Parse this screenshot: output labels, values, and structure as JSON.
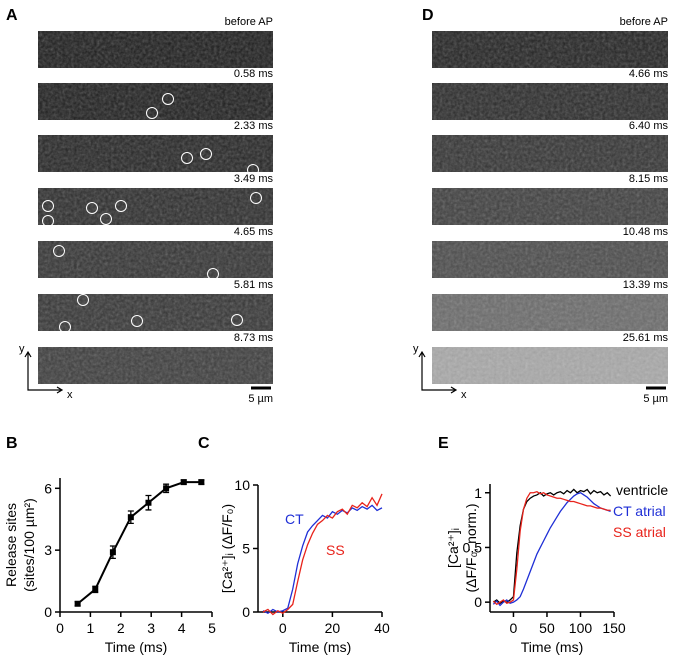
{
  "image_panels": [
    {
      "label": "A",
      "frames": [
        "before AP",
        "0.58 ms",
        "2.33 ms",
        "3.49 ms",
        "4.65 ms",
        "5.81 ms",
        "8.73 ms"
      ],
      "scale_bar": "5 µm",
      "axis_x": "x",
      "axis_y": "y"
    },
    {
      "label": "D",
      "frames": [
        "before AP",
        "4.66 ms",
        "6.40 ms",
        "8.15 ms",
        "10.48 ms",
        "13.39 ms",
        "25.61 ms"
      ],
      "scale_bar": "5 µm",
      "axis_x": "x",
      "axis_y": "y"
    }
  ],
  "chart_data": [
    {
      "label": "B",
      "type": "line",
      "x_label": "Time (ms)",
      "y_label": [
        "Release sites",
        "(sites/100 µm²)"
      ],
      "xlim": [
        0,
        5
      ],
      "xticks": [
        0,
        1,
        2,
        3,
        4,
        5
      ],
      "ylim": [
        0,
        6.5
      ],
      "yticks": [
        0,
        3,
        6
      ],
      "series": [
        {
          "color": "#000000",
          "x": [
            0.58,
            1.16,
            1.74,
            2.33,
            2.91,
            3.49,
            4.07,
            4.65
          ],
          "values": [
            0.4,
            1.1,
            2.9,
            4.6,
            5.3,
            6.0,
            6.3,
            6.3
          ],
          "errors": [
            0.1,
            0.15,
            0.3,
            0.3,
            0.35,
            0.2,
            0.1,
            0.1
          ]
        }
      ]
    },
    {
      "label": "C",
      "type": "line",
      "x_label": "Time (ms)",
      "y_label": [
        "[Ca²⁺]ᵢ (ΔF/F₀)"
      ],
      "xlim": [
        -10,
        40
      ],
      "xticks": [
        0,
        20,
        40
      ],
      "ylim": [
        0,
        10
      ],
      "yticks": [
        0,
        5,
        10
      ],
      "series": [
        {
          "name": "CT",
          "color": "#1f2fd6",
          "x": [
            -8,
            -6,
            -4,
            -2,
            0,
            2,
            4,
            6,
            8,
            10,
            12,
            14,
            16,
            18,
            20,
            22,
            24,
            26,
            28,
            30,
            32,
            34,
            36,
            38,
            40
          ],
          "values": [
            0.1,
            -0.1,
            0.2,
            0,
            0.1,
            0.3,
            1.8,
            3.8,
            5.2,
            6.3,
            6.8,
            7.2,
            7.6,
            7.4,
            7.9,
            7.7,
            8.0,
            7.8,
            8.2,
            8.0,
            8.3,
            8.1,
            8.4,
            8.0,
            8.2
          ]
        },
        {
          "name": "SS",
          "color": "#e8231b",
          "x": [
            -8,
            -6,
            -4,
            -2,
            0,
            2,
            4,
            6,
            8,
            10,
            12,
            14,
            16,
            18,
            20,
            22,
            24,
            26,
            28,
            30,
            32,
            34,
            36,
            38,
            40
          ],
          "values": [
            0,
            0.2,
            -0.2,
            0.1,
            -0.1,
            0.2,
            0.6,
            2.4,
            4.1,
            5.3,
            6.2,
            6.9,
            7.2,
            7.6,
            7.4,
            7.9,
            8.1,
            7.7,
            8.4,
            8.2,
            8.6,
            8.3,
            9.0,
            8.4,
            9.3
          ]
        }
      ]
    },
    {
      "label": "E",
      "type": "line",
      "x_label": "Time (ms)",
      "y_label": [
        "[Ca²⁺]ᵢ",
        "(ΔF/F₀; norm.)"
      ],
      "xlim": [
        -35,
        150
      ],
      "xticks": [
        0,
        50,
        100,
        150
      ],
      "ylim": [
        -0.09,
        1.08
      ],
      "yticks": [
        0,
        0.5,
        1
      ],
      "series": [
        {
          "name": "ventricle",
          "color": "#000000",
          "x": [
            -30,
            -25,
            -20,
            -15,
            -10,
            -5,
            0,
            5,
            10,
            15,
            20,
            25,
            30,
            35,
            40,
            45,
            50,
            55,
            60,
            65,
            70,
            75,
            80,
            85,
            90,
            95,
            100,
            105,
            110,
            115,
            120,
            125,
            130,
            135,
            140,
            145
          ],
          "values": [
            0,
            0.02,
            -0.01,
            0.01,
            0,
            0.02,
            0.05,
            0.45,
            0.7,
            0.85,
            0.92,
            0.95,
            0.97,
            0.98,
            1.0,
            0.97,
            0.99,
            1.0,
            0.98,
            1.0,
            1.01,
            0.99,
            1.02,
            1.0,
            1.03,
            1.0,
            1.02,
            1.01,
            1.03,
            0.99,
            1.02,
            1.0,
            1.01,
            0.98,
            1.0,
            0.97
          ]
        },
        {
          "name": "CT atrial",
          "color": "#1f2fd6",
          "x": [
            -30,
            -25,
            -20,
            -15,
            -10,
            -5,
            0,
            5,
            10,
            15,
            20,
            25,
            30,
            35,
            40,
            45,
            50,
            55,
            60,
            65,
            70,
            75,
            80,
            85,
            90,
            95,
            100,
            105,
            110,
            115,
            120,
            125,
            130,
            135,
            140,
            145
          ],
          "values": [
            -0.02,
            0.01,
            -0.03,
            0,
            0.02,
            -0.01,
            0,
            0.02,
            0.05,
            0.12,
            0.2,
            0.28,
            0.36,
            0.44,
            0.5,
            0.56,
            0.62,
            0.68,
            0.73,
            0.78,
            0.83,
            0.87,
            0.91,
            0.94,
            0.97,
            0.99,
            1.0,
            0.98,
            0.96,
            0.93,
            0.9,
            0.88,
            0.86,
            0.85,
            0.84,
            0.83
          ]
        },
        {
          "name": "SS atrial",
          "color": "#e8231b",
          "x": [
            -30,
            -25,
            -20,
            -15,
            -10,
            -5,
            0,
            5,
            10,
            15,
            20,
            25,
            30,
            35,
            40,
            45,
            50,
            55,
            60,
            65,
            70,
            75,
            80,
            85,
            90,
            95,
            100,
            105,
            110,
            115,
            120,
            125,
            130,
            135,
            140,
            145
          ],
          "values": [
            0.01,
            -0.02,
            0,
            0.02,
            -0.01,
            0,
            0.02,
            0.3,
            0.65,
            0.85,
            0.95,
            1.0,
            1.0,
            1.01,
            0.99,
            1.0,
            0.98,
            0.97,
            0.96,
            0.95,
            0.95,
            0.94,
            0.93,
            0.92,
            0.92,
            0.91,
            0.9,
            0.89,
            0.88,
            0.88,
            0.87,
            0.86,
            0.86,
            0.85,
            0.84,
            0.84
          ]
        }
      ]
    }
  ]
}
